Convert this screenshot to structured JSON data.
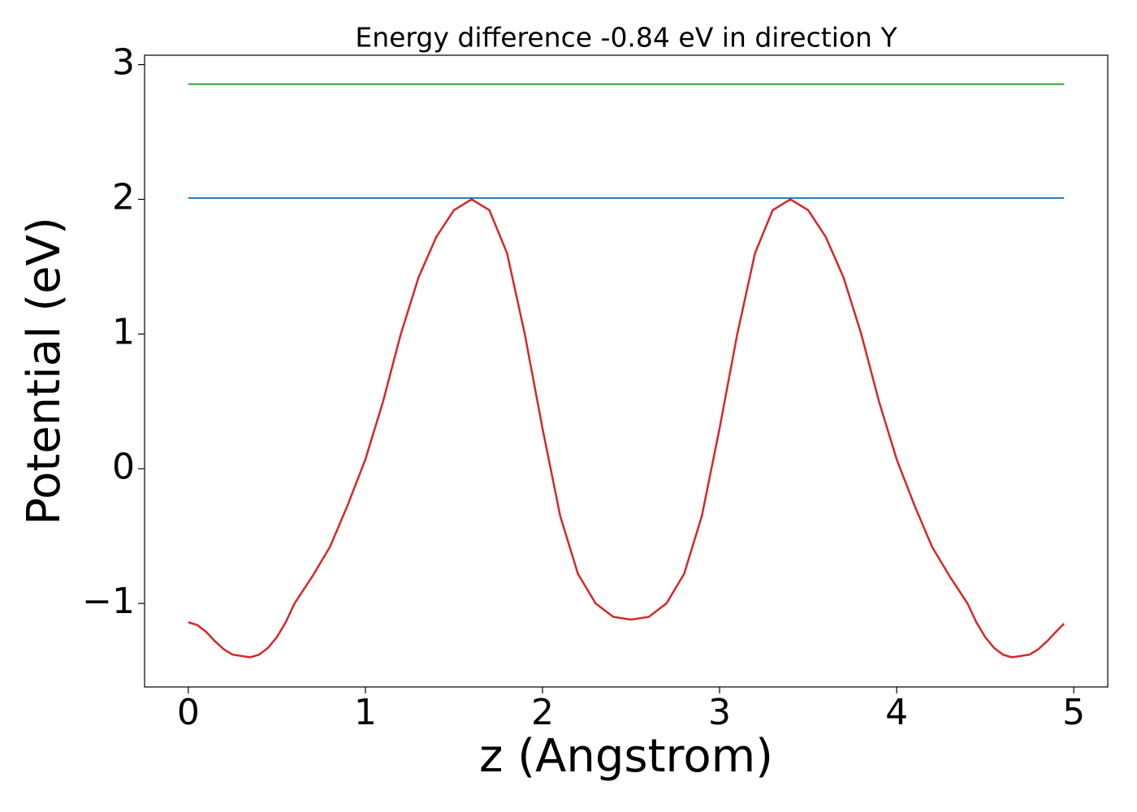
{
  "chart_data": {
    "type": "line",
    "title": "Energy difference -0.84 eV in direction Y",
    "x_label": "z (Angstrom)",
    "y_label": "Potential (eV)",
    "xlim": [
      -0.247,
      5.192
    ],
    "ylim": [
      -1.62,
      3.07
    ],
    "xticks": [
      0,
      1,
      2,
      3,
      4,
      5
    ],
    "yticks": [
      -1,
      0,
      1,
      2,
      3
    ],
    "series": [
      {
        "color": "#2ca02c",
        "x": [
          0,
          4.945
        ],
        "values": [
          2.855,
          2.855
        ]
      },
      {
        "color": "#1f77b4",
        "x": [
          0,
          4.945
        ],
        "values": [
          2.01,
          2.01
        ]
      },
      {
        "color": "#d62728",
        "x": [
          0,
          0.05,
          0.1,
          0.15,
          0.2,
          0.25,
          0.35,
          0.4,
          0.45,
          0.5,
          0.55,
          0.6,
          0.7,
          0.8,
          0.9,
          1.0,
          1.1,
          1.2,
          1.3,
          1.4,
          1.5,
          1.6,
          1.7,
          1.8,
          1.9,
          2.0,
          2.1,
          2.2,
          2.3,
          2.4,
          2.5,
          2.6,
          2.7,
          2.8,
          2.9,
          3.0,
          3.1,
          3.2,
          3.3,
          3.4,
          3.5,
          3.6,
          3.7,
          3.8,
          3.9,
          4.0,
          4.1,
          4.2,
          4.3,
          4.4,
          4.45,
          4.5,
          4.55,
          4.6,
          4.65,
          4.75,
          4.8,
          4.85,
          4.9,
          4.945
        ],
        "values": [
          -1.14,
          -1.16,
          -1.21,
          -1.28,
          -1.34,
          -1.38,
          -1.4,
          -1.38,
          -1.33,
          -1.25,
          -1.14,
          -1.0,
          -0.8,
          -0.58,
          -0.27,
          0.07,
          0.5,
          1.0,
          1.42,
          1.72,
          1.92,
          2.0,
          1.92,
          1.6,
          1.0,
          0.3,
          -0.35,
          -0.78,
          -1.0,
          -1.1,
          -1.12,
          -1.1,
          -1.0,
          -0.78,
          -0.35,
          0.3,
          1.0,
          1.6,
          1.92,
          2.0,
          1.92,
          1.72,
          1.42,
          1.0,
          0.5,
          0.07,
          -0.27,
          -0.58,
          -0.8,
          -1.0,
          -1.14,
          -1.25,
          -1.33,
          -1.38,
          -1.4,
          -1.38,
          -1.34,
          -1.28,
          -1.21,
          -1.15
        ]
      }
    ]
  }
}
